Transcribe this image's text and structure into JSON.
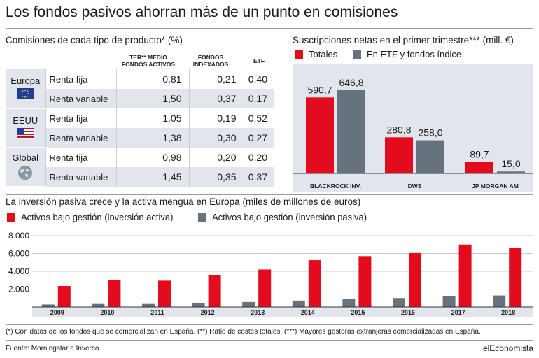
{
  "title": "Los fondos pasivos ahorran más de un punto en comisiones",
  "colors": {
    "red": "#e30b1e",
    "gray": "#66727e",
    "shade": "#e2e6ec",
    "accent_rule": "#9a9a9a"
  },
  "fees_table": {
    "title": "Comisiones de cada tipo de producto* (%)",
    "columns": [
      "TER** MEDIO FONDOS ACTIVOS",
      "FONDOS INDEXADOS",
      "ETF"
    ],
    "column_lines": [
      [
        "TER** MEDIO",
        "FONDOS ACTIVOS"
      ],
      [
        "FONDOS",
        "INDEXADOS"
      ],
      [
        "ETF"
      ]
    ],
    "regions": [
      {
        "name": "Europa",
        "icon": "eu-flag-icon",
        "rows": [
          {
            "type": "Renta fija",
            "values": [
              "0,81",
              "0,21",
              "0,40"
            ]
          },
          {
            "type": "Renta variable",
            "values": [
              "1,50",
              "0,37",
              "0,17"
            ]
          }
        ]
      },
      {
        "name": "EEUU",
        "icon": "us-flag-icon",
        "rows": [
          {
            "type": "Renta fija",
            "values": [
              "1,05",
              "0,19",
              "0,52"
            ]
          },
          {
            "type": "Renta variable",
            "values": [
              "1,38",
              "0,30",
              "0,27"
            ]
          }
        ]
      },
      {
        "name": "Global",
        "icon": "globe-icon",
        "rows": [
          {
            "type": "Renta fija",
            "values": [
              "0,98",
              "0,20",
              "0,20"
            ]
          },
          {
            "type": "Renta variable",
            "values": [
              "1,45",
              "0,35",
              "0,37"
            ]
          }
        ]
      }
    ]
  },
  "subs": {
    "title": "Suscripciones netas en el primer trimestre*** (mill. €)",
    "legend": [
      "Totales",
      "En ETF y fondos índice"
    ]
  },
  "aum": {
    "title": "La inversión pasiva crece y la activa mengua en Europa (miles de millones de euros)",
    "legend": [
      "Activos bajo gestión (inversión activa)",
      "Activos bajo gestión (inversión pasiva)"
    ]
  },
  "chart_data": [
    {
      "type": "table",
      "title": "Comisiones de cada tipo de producto* (%)",
      "columns": [
        "TER** MEDIO FONDOS ACTIVOS",
        "FONDOS INDEXADOS",
        "ETF"
      ],
      "rows": [
        [
          "Europa",
          "Renta fija",
          0.81,
          0.21,
          0.4
        ],
        [
          "Europa",
          "Renta variable",
          1.5,
          0.37,
          0.17
        ],
        [
          "EEUU",
          "Renta fija",
          1.05,
          0.19,
          0.52
        ],
        [
          "EEUU",
          "Renta variable",
          1.38,
          0.3,
          0.27
        ],
        [
          "Global",
          "Renta fija",
          0.98,
          0.2,
          0.2
        ],
        [
          "Global",
          "Renta variable",
          1.45,
          0.35,
          0.37
        ]
      ]
    },
    {
      "type": "bar",
      "title": "Suscripciones netas en el primer trimestre*** (mill. €)",
      "categories": [
        "BLACKROCK INV.",
        "DWS",
        "JP MORGAN AM"
      ],
      "series": [
        {
          "name": "Totales",
          "values": [
            590.7,
            280.8,
            89.7
          ],
          "labels": [
            "590,7",
            "280,8",
            "89,7"
          ],
          "color": "#e30b1e"
        },
        {
          "name": "En ETF y fondos índice",
          "values": [
            646.8,
            258.0,
            15.0
          ],
          "labels": [
            "646,8",
            "258,0",
            "15,0"
          ],
          "color": "#66727e"
        }
      ],
      "ylim": [
        0,
        646.8
      ],
      "legend": "top-left"
    },
    {
      "type": "bar",
      "title": "La inversión pasiva crece y la activa mengua en Europa (miles de millones de euros)",
      "categories": [
        "2009",
        "2010",
        "2011",
        "2012",
        "2013",
        "2014",
        "2015",
        "2016",
        "2017",
        "2018"
      ],
      "series": [
        {
          "name": "Activos bajo gestión (inversión pasiva)",
          "values": [
            280,
            340,
            340,
            460,
            560,
            720,
            890,
            1000,
            1240,
            1290
          ],
          "color": "#66727e"
        },
        {
          "name": "Activos bajo gestión (inversión activa)",
          "values": [
            2350,
            3020,
            2950,
            3560,
            4200,
            5250,
            5700,
            6050,
            7000,
            6650
          ],
          "color": "#e30b1e"
        }
      ],
      "yticks": [
        "2.000",
        "4.000",
        "6.000",
        "8.000"
      ],
      "ytick_values": [
        2000,
        4000,
        6000,
        8000
      ],
      "ylim": [
        0,
        8000
      ],
      "grid": true,
      "legend": "top-left"
    }
  ],
  "footnote": "(*) Con datos de los fondos que se comercializan en España. (**) Ratio de costes totales. (***) Mayores gestoras extranjeras comercializadas en España.",
  "source": "Fuente: Morningstar e Inverco.",
  "brand": "elEconomista"
}
